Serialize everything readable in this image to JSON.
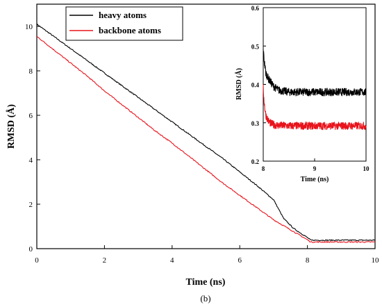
{
  "caption": "(b)",
  "chart_data": [
    {
      "type": "line",
      "xlabel": "Time (ns)",
      "ylabel": "RMSD (Å)",
      "xlim": [
        0,
        10
      ],
      "ylim": [
        0,
        11
      ],
      "xticks": [
        "0",
        "2",
        "4",
        "6",
        "8",
        "10"
      ],
      "yticks": [
        "0",
        "2",
        "4",
        "6",
        "8",
        "10"
      ],
      "grid": false,
      "legend_position": "top-left",
      "series": [
        {
          "name": "heavy atoms",
          "color": "#000000",
          "x": [
            0,
            0.5,
            1,
            1.5,
            2,
            2.5,
            3,
            3.5,
            4,
            4.5,
            5,
            5.5,
            6,
            6.5,
            7,
            7.3,
            7.6,
            8.0,
            8.1,
            8.5,
            9,
            9.5,
            10
          ],
          "y": [
            10.1,
            9.55,
            9.0,
            8.45,
            7.9,
            7.35,
            6.8,
            6.25,
            5.7,
            5.15,
            4.6,
            4.05,
            3.45,
            2.85,
            2.2,
            1.35,
            0.9,
            0.5,
            0.38,
            0.38,
            0.38,
            0.38,
            0.38
          ]
        },
        {
          "name": "backbone atoms",
          "color": "#e8131b",
          "x": [
            0,
            0.5,
            1,
            1.5,
            2,
            2.5,
            3,
            3.5,
            4,
            4.5,
            5,
            5.5,
            6,
            6.5,
            7,
            7.5,
            8.0,
            8.1,
            8.5,
            9,
            9.5,
            10
          ],
          "y": [
            9.55,
            8.95,
            8.35,
            7.75,
            7.1,
            6.5,
            5.9,
            5.3,
            4.75,
            4.15,
            3.55,
            2.95,
            2.4,
            1.85,
            1.3,
            0.85,
            0.4,
            0.3,
            0.3,
            0.3,
            0.3,
            0.3
          ]
        }
      ]
    },
    {
      "type": "line",
      "xlabel": "Time (ns)",
      "ylabel": "RMSD (Å)",
      "xlim": [
        8,
        10
      ],
      "ylim": [
        0.2,
        0.6
      ],
      "xticks": [
        "8",
        "9",
        "10"
      ],
      "yticks": [
        "0.2",
        "0.3",
        "0.4",
        "0.5",
        "0.6"
      ],
      "grid": false,
      "series": [
        {
          "color": "#000000",
          "x": [
            8.0,
            8.02,
            8.05,
            8.1,
            8.15,
            8.2,
            8.3,
            8.5,
            9.0,
            9.5,
            10.0
          ],
          "y": [
            0.49,
            0.46,
            0.43,
            0.415,
            0.405,
            0.395,
            0.385,
            0.38,
            0.38,
            0.38,
            0.38
          ]
        },
        {
          "color": "#e8131b",
          "x": [
            8.0,
            8.02,
            8.05,
            8.1,
            8.15,
            8.2,
            8.3,
            8.5,
            9.0,
            9.5,
            10.0
          ],
          "y": [
            0.39,
            0.35,
            0.32,
            0.305,
            0.298,
            0.295,
            0.293,
            0.292,
            0.292,
            0.292,
            0.292
          ]
        }
      ]
    }
  ]
}
